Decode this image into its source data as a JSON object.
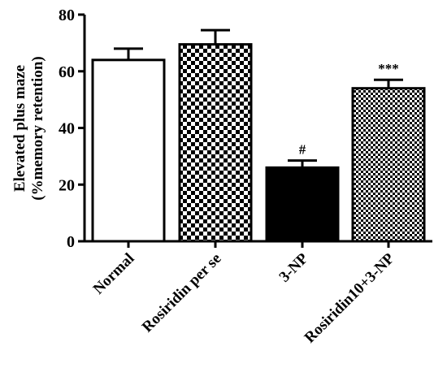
{
  "chart_data": {
    "type": "bar",
    "title": "",
    "xlabel": "",
    "ylabel": [
      "Elevated plus maze",
      "(%memory retention)"
    ],
    "ylim": [
      0,
      80
    ],
    "yticks": [
      0,
      20,
      40,
      60,
      80
    ],
    "categories": [
      "Normal",
      "Rosiridin per se",
      "3-NP",
      "Rosiridin10+3-NP"
    ],
    "values": [
      64,
      69.5,
      26,
      54
    ],
    "errors": [
      4,
      5,
      2.5,
      3
    ],
    "annotations": [
      "",
      "",
      "#",
      "***"
    ],
    "fills": [
      "white",
      "checker-coarse",
      "black",
      "checker-fine"
    ],
    "colors": {
      "stroke": "#000000",
      "background": "#ffffff"
    },
    "grid": false
  }
}
